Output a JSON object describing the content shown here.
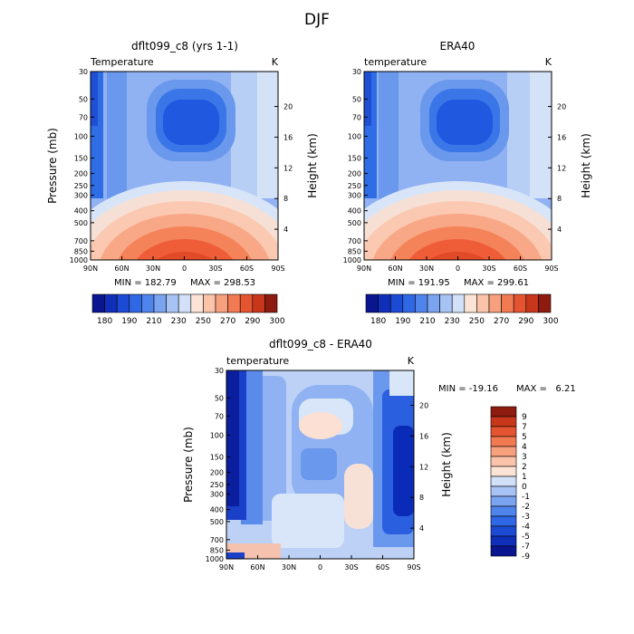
{
  "page_title": "DJF",
  "chart_data": [
    {
      "type": "heatmap",
      "title": "dflt099_c8 (yrs 1-1)",
      "field_label": "Temperature",
      "units": "K",
      "ylabel": "Pressure (mb)",
      "ylabel_right": "Height (km)",
      "x_ticks": [
        "90N",
        "60N",
        "30N",
        "0",
        "30S",
        "60S",
        "90S"
      ],
      "y_ticks": [
        "30",
        "50",
        "70",
        "100",
        "150",
        "200",
        "250",
        "300",
        "400",
        "500",
        "700",
        "850",
        "1000"
      ],
      "y_ticks_right": [
        "20",
        "16",
        "12",
        "8",
        "4"
      ],
      "min_text": "MIN = 182.79",
      "max_text": "MAX = 298.53",
      "min": 182.79,
      "max": 298.53,
      "colorbar_labels": [
        "180",
        "190",
        "210",
        "230",
        "250",
        "270",
        "290",
        "300"
      ],
      "colorbar_levels": [
        180,
        185,
        190,
        200,
        210,
        220,
        230,
        240,
        250,
        260,
        270,
        280,
        290,
        295,
        300
      ]
    },
    {
      "type": "heatmap",
      "title": "ERA40",
      "field_label": "temperature",
      "units": "K",
      "ylabel_right": "Height (km)",
      "x_ticks": [
        "90N",
        "60N",
        "30N",
        "0",
        "30S",
        "60S",
        "90S"
      ],
      "y_ticks": [
        "30",
        "50",
        "70",
        "100",
        "150",
        "200",
        "250",
        "300",
        "400",
        "500",
        "700",
        "850",
        "1000"
      ],
      "y_ticks_right": [
        "20",
        "16",
        "12",
        "8",
        "4"
      ],
      "min_text": "MIN = 191.95",
      "max_text": "MAX = 299.61",
      "min": 191.95,
      "max": 299.61,
      "colorbar_labels": [
        "180",
        "190",
        "210",
        "230",
        "250",
        "270",
        "290",
        "300"
      ],
      "colorbar_levels": [
        180,
        185,
        190,
        200,
        210,
        220,
        230,
        240,
        250,
        260,
        270,
        280,
        290,
        295,
        300
      ]
    },
    {
      "type": "heatmap",
      "title": "dflt099_c8 - ERA40",
      "field_label": "temperature",
      "units": "K",
      "ylabel": "Pressure (mb)",
      "ylabel_right": "Height (km)",
      "x_ticks": [
        "90N",
        "60N",
        "30N",
        "0",
        "30S",
        "60S",
        "90S"
      ],
      "y_ticks": [
        "30",
        "50",
        "70",
        "100",
        "150",
        "200",
        "250",
        "300",
        "400",
        "500",
        "700",
        "850",
        "1000"
      ],
      "y_ticks_right": [
        "20",
        "16",
        "12",
        "8",
        "4"
      ],
      "min_text": "MIN = -19.16",
      "max_text": "MAX =   6.21",
      "min": -19.16,
      "max": 6.21,
      "colorbar_labels": [
        "9",
        "7",
        "5",
        "4",
        "3",
        "2",
        "1",
        "0",
        "-1",
        "-2",
        "-3",
        "-4",
        "-5",
        "-7",
        "-9"
      ]
    }
  ]
}
